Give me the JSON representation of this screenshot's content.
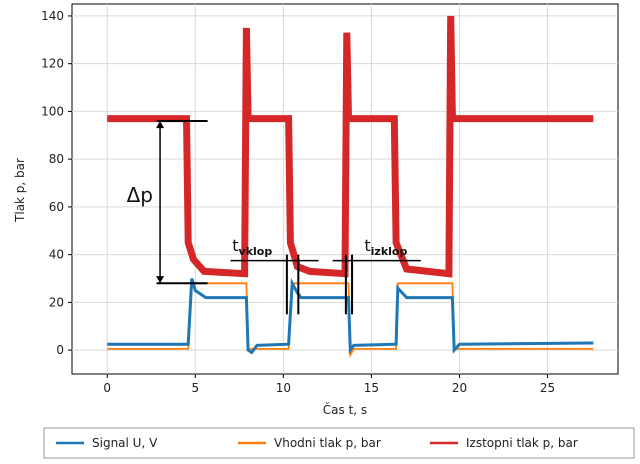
{
  "chart_data": {
    "type": "line",
    "xlabel": "Čas t, s",
    "ylabel": "Tlak p, bar",
    "xlim": [
      -2,
      29
    ],
    "ylim": [
      -10,
      145
    ],
    "xticks": [
      0,
      5,
      10,
      15,
      20,
      25
    ],
    "yticks": [
      0,
      20,
      40,
      60,
      80,
      100,
      120,
      140
    ],
    "grid": true,
    "legend_position": "bottom",
    "series": [
      {
        "name": "Signal U, V",
        "color": "#1f77b4",
        "points": [
          [
            0,
            2.5
          ],
          [
            4.6,
            2.5
          ],
          [
            4.8,
            30
          ],
          [
            5,
            25
          ],
          [
            5.6,
            22
          ],
          [
            7.9,
            22
          ],
          [
            8,
            0
          ],
          [
            8.2,
            -1
          ],
          [
            8.5,
            2
          ],
          [
            10.3,
            2.5
          ],
          [
            10.5,
            28
          ],
          [
            10.8,
            24
          ],
          [
            11,
            22
          ],
          [
            13.7,
            22
          ],
          [
            13.8,
            0
          ],
          [
            14,
            2
          ],
          [
            16.4,
            2.5
          ],
          [
            16.5,
            26
          ],
          [
            17,
            22
          ],
          [
            19.6,
            22
          ],
          [
            19.7,
            0
          ],
          [
            20,
            2.5
          ],
          [
            27.6,
            3
          ]
        ]
      },
      {
        "name": "Vhodni tlak p, bar",
        "color": "#ff7f0e",
        "points": [
          [
            0,
            0.5
          ],
          [
            4.6,
            0.5
          ],
          [
            4.8,
            28
          ],
          [
            7.9,
            28
          ],
          [
            8,
            0.5
          ],
          [
            10.3,
            0.5
          ],
          [
            10.5,
            28
          ],
          [
            13.7,
            28
          ],
          [
            13.8,
            -2
          ],
          [
            14,
            0.5
          ],
          [
            16.4,
            0.5
          ],
          [
            16.5,
            28
          ],
          [
            19.6,
            28
          ],
          [
            19.7,
            0.5
          ],
          [
            27.6,
            0.5
          ]
        ]
      },
      {
        "name": "Izstopni tlak p, bar",
        "color": "#d62728",
        "points": [
          [
            0,
            97
          ],
          [
            4.5,
            97
          ],
          [
            4.6,
            45
          ],
          [
            4.9,
            38
          ],
          [
            5.5,
            33
          ],
          [
            7.8,
            32
          ],
          [
            7.9,
            135
          ],
          [
            8.0,
            97
          ],
          [
            10.3,
            97
          ],
          [
            10.4,
            45
          ],
          [
            10.8,
            35
          ],
          [
            11.5,
            33
          ],
          [
            13.5,
            32
          ],
          [
            13.6,
            133
          ],
          [
            13.7,
            97
          ],
          [
            16.3,
            97
          ],
          [
            16.4,
            45
          ],
          [
            17,
            34
          ],
          [
            19.4,
            32
          ],
          [
            19.5,
            140
          ],
          [
            19.6,
            97
          ],
          [
            27.6,
            97
          ]
        ]
      }
    ],
    "annotations": {
      "delta_p": "Δp",
      "t_on_main": "t",
      "t_on_sub": "vklop",
      "t_off_main": "t",
      "t_off_sub": "izklop"
    }
  },
  "legend": [
    {
      "label": "Signal U, V",
      "color": "#1f77b4"
    },
    {
      "label": "Vhodni tlak p, bar",
      "color": "#ff7f0e"
    },
    {
      "label": "Izstopni tlak p, bar",
      "color": "#d62728"
    }
  ]
}
